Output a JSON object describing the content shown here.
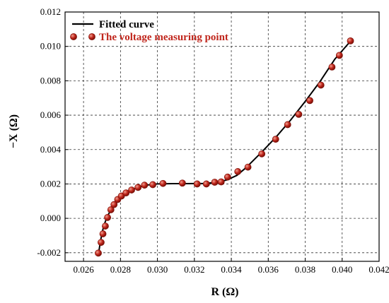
{
  "chart_data": {
    "type": "scatter",
    "xlabel": "R (Ω)",
    "ylabel": "−X (Ω)",
    "xlim": [
      0.025,
      0.042
    ],
    "ylim": [
      -0.0025,
      0.012
    ],
    "x_ticks": [
      "0.026",
      "0.028",
      "0.030",
      "0.032",
      "0.034",
      "0.036",
      "0.038",
      "0.040",
      "0.042"
    ],
    "y_ticks": [
      "-0.002",
      "0.000",
      "0.002",
      "0.004",
      "0.006",
      "0.008",
      "0.010",
      "0.012"
    ],
    "x_tick_values": [
      0.026,
      0.028,
      0.03,
      0.032,
      0.034,
      0.036,
      0.038,
      0.04,
      0.042
    ],
    "y_tick_values": [
      -0.002,
      0.0,
      0.002,
      0.004,
      0.006,
      0.008,
      0.01,
      0.012
    ],
    "grid": true,
    "legend_position": "top-left",
    "colors": {
      "curve": "#000000",
      "point_fill": "#c0261c",
      "point_stroke": "#7a1008",
      "point_highlight": "#f0a090"
    },
    "series": [
      {
        "name": "Fitted curve",
        "kind": "line",
        "x": [
          0.02682,
          0.0269,
          0.027,
          0.02712,
          0.0273,
          0.02755,
          0.02785,
          0.0282,
          0.0287,
          0.0293,
          0.03,
          0.0308,
          0.0315,
          0.0325,
          0.0333,
          0.0338,
          0.0343,
          0.0348,
          0.0356,
          0.0364,
          0.0372,
          0.038,
          0.0388,
          0.0396,
          0.04045
        ],
        "y": [
          -0.002,
          -0.00145,
          -0.00085,
          -0.00035,
          0.00015,
          0.0006,
          0.00098,
          0.00135,
          0.0017,
          0.00192,
          0.002,
          0.00202,
          0.00202,
          0.00203,
          0.0021,
          0.00225,
          0.0025,
          0.00295,
          0.0038,
          0.0047,
          0.0057,
          0.0068,
          0.00795,
          0.00925,
          0.0103
        ]
      },
      {
        "name": "The voltage measuring point",
        "kind": "scatter",
        "x": [
          0.0268,
          0.02695,
          0.02705,
          0.02718,
          0.0273,
          0.02748,
          0.02765,
          0.02785,
          0.02805,
          0.0283,
          0.0286,
          0.02895,
          0.0293,
          0.02975,
          0.0303,
          0.03135,
          0.03215,
          0.03265,
          0.0331,
          0.03345,
          0.0338,
          0.03435,
          0.0349,
          0.03565,
          0.0364,
          0.03705,
          0.03765,
          0.03825,
          0.03885,
          0.03945,
          0.03985,
          0.04045
        ],
        "y": [
          -0.00202,
          -0.0014,
          -0.0009,
          -0.00045,
          5e-05,
          0.0005,
          0.0008,
          0.0011,
          0.0013,
          0.00148,
          0.00165,
          0.0018,
          0.00193,
          0.00196,
          0.00203,
          0.00205,
          0.002,
          0.002,
          0.0021,
          0.00212,
          0.0024,
          0.00272,
          0.00298,
          0.00375,
          0.0046,
          0.00545,
          0.00605,
          0.00685,
          0.00775,
          0.0088,
          0.00948,
          0.01032
        ]
      }
    ]
  }
}
